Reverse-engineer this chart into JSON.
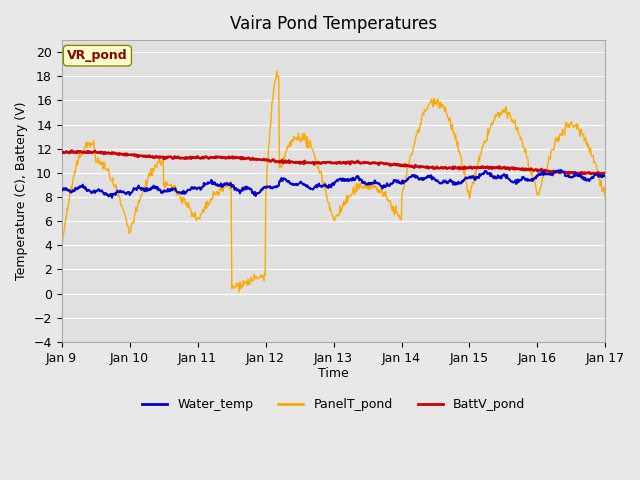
{
  "title": "Vaira Pond Temperatures",
  "xlabel": "Time",
  "ylabel": "Temperature (C), Battery (V)",
  "xlim_days": [
    0,
    8
  ],
  "ylim": [
    -4,
    21
  ],
  "yticks": [
    -4,
    -2,
    0,
    2,
    4,
    6,
    8,
    10,
    12,
    14,
    16,
    18,
    20
  ],
  "xtick_labels": [
    "Jan 9",
    "Jan 10",
    "Jan 11",
    "Jan 12",
    "Jan 13",
    "Jan 14",
    "Jan 15",
    "Jan 16",
    "Jan 17"
  ],
  "bg_color": "#e8e8e8",
  "plot_bg_color": "#e0e0e0",
  "grid_color": "#ffffff",
  "water_color": "#0000cc",
  "panel_color": "#ffaa00",
  "batt_color": "#cc0000",
  "legend_label_water": "Water_temp",
  "legend_label_panel": "PanelT_pond",
  "legend_label_batt": "BattV_pond",
  "annotation_text": "VR_pond",
  "annotation_color": "#880000",
  "annotation_bg": "#ffffcc"
}
